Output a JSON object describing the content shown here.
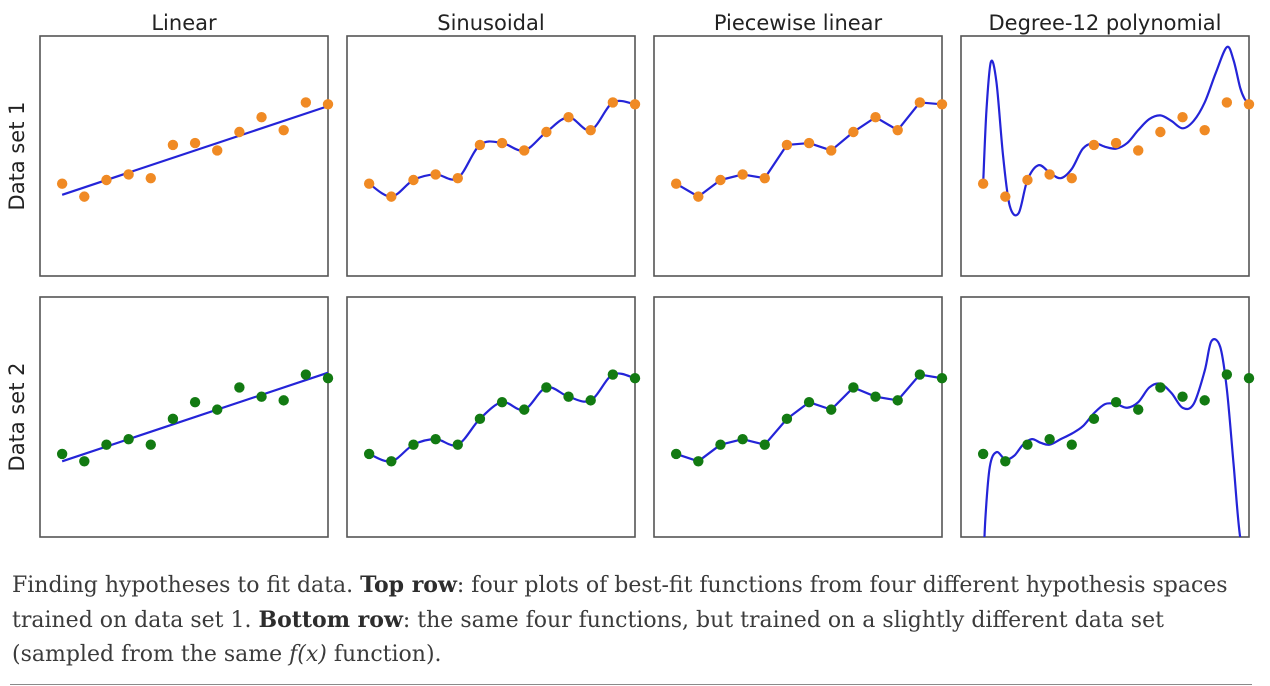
{
  "colors": {
    "dataset1_points": "#f08a24",
    "dataset2_points": "#127a12",
    "fit_line": "#2424d8",
    "panel_border": "#555555"
  },
  "chart_data": {
    "type": "scatter",
    "columns": [
      "Linear",
      "Sinusoidal",
      "Piecewise linear",
      "Degree-12 polynomial"
    ],
    "rows": [
      "Data set 1",
      "Data set 2"
    ],
    "xlim": [
      0,
      13
    ],
    "ylim": [
      0,
      13
    ],
    "grid": false,
    "datasets": [
      {
        "name": "Data set 1",
        "x": [
          1,
          2,
          3,
          4,
          5,
          6,
          7,
          8,
          9,
          10,
          11,
          12,
          13
        ],
        "y": [
          5.0,
          4.3,
          5.2,
          5.5,
          5.3,
          7.1,
          7.2,
          6.8,
          7.8,
          8.6,
          7.9,
          9.4,
          9.3
        ]
      },
      {
        "name": "Data set 2",
        "x": [
          1,
          2,
          3,
          4,
          5,
          6,
          7,
          8,
          9,
          10,
          11,
          12,
          13
        ],
        "y": [
          4.5,
          4.1,
          5.0,
          5.3,
          5.0,
          6.4,
          7.3,
          6.9,
          8.1,
          7.6,
          7.4,
          8.8,
          8.6
        ]
      }
    ],
    "linear_fits": [
      {
        "x": [
          1,
          13
        ],
        "y": [
          4.4,
          9.2
        ]
      },
      {
        "x": [
          1,
          13
        ],
        "y": [
          4.1,
          8.9
        ]
      }
    ],
    "polynomial_fits": [
      {
        "x": [
          1,
          1.15,
          1.35,
          1.6,
          1.9,
          2.2,
          2.6,
          3,
          3.5,
          4,
          4.5,
          5,
          5.5,
          6,
          6.5,
          7,
          7.5,
          8,
          8.5,
          9,
          9.5,
          10,
          10.5,
          11,
          11.5,
          12,
          12.3,
          12.6,
          12.8,
          13
        ],
        "y": [
          5.0,
          9.0,
          11.6,
          10.5,
          6.5,
          3.8,
          3.4,
          5.2,
          6.0,
          5.6,
          5.3,
          5.8,
          6.9,
          7.2,
          7.0,
          6.9,
          7.2,
          7.9,
          8.5,
          8.7,
          8.4,
          8.0,
          8.4,
          9.4,
          11.0,
          12.4,
          11.7,
          10.2,
          9.6,
          9.3
        ]
      },
      {
        "x": [
          1,
          1.1,
          1.3,
          1.6,
          2,
          2.4,
          2.8,
          3.2,
          3.6,
          4,
          4.5,
          5,
          5.5,
          6,
          6.5,
          7,
          7.5,
          8,
          8.5,
          9,
          9.5,
          10,
          10.5,
          11,
          11.3,
          11.7,
          12,
          12.3,
          12.6,
          13
        ],
        "y": [
          -2.0,
          1.0,
          3.8,
          4.6,
          4.2,
          4.4,
          5.0,
          5.3,
          5.1,
          5.0,
          5.3,
          5.6,
          6.0,
          6.7,
          7.2,
          7.2,
          7.0,
          7.3,
          8.1,
          8.3,
          7.8,
          7.0,
          7.2,
          9.0,
          10.6,
          10.3,
          8.0,
          4.0,
          0.0,
          -2.0
        ]
      }
    ]
  },
  "caption": {
    "lead": "Finding hypotheses to fit data.",
    "top_label": "Top row",
    "top_text": ": four plots of best-fit functions from four different hypothesis spaces trained on data set 1.",
    "bottom_label": "Bottom row",
    "bottom_text": ": the same four functions, but trained on a slightly different data set (sampled from the same ",
    "math": "f(x)",
    "tail": " function)."
  }
}
